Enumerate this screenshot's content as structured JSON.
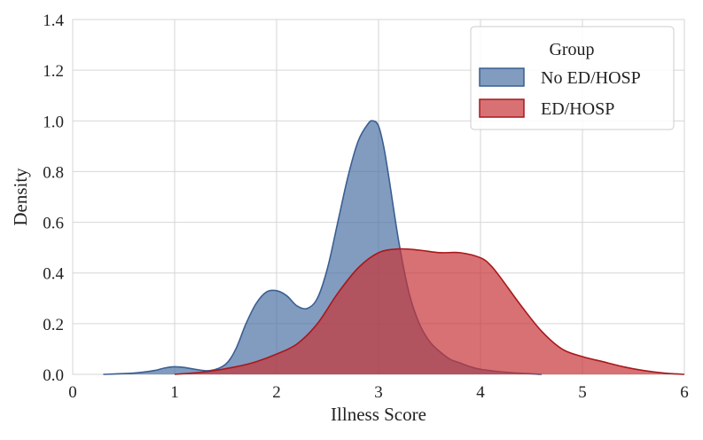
{
  "chart_data": {
    "type": "area",
    "title": "",
    "xlabel": "Illness Score",
    "ylabel": "Density",
    "xlim": [
      0,
      6
    ],
    "ylim": [
      0,
      1.4
    ],
    "xticks": [
      "0",
      "1",
      "2",
      "3",
      "4",
      "5",
      "6"
    ],
    "yticks": [
      "0.0",
      "0.2",
      "0.4",
      "0.6",
      "0.8",
      "1.0",
      "1.2",
      "1.4"
    ],
    "grid": true,
    "legend": {
      "title": "Group",
      "position": "top-right"
    },
    "series": [
      {
        "name": "No ED/HOSP",
        "fill": "#4c72a4",
        "stroke": "#3a5f92",
        "x": [
          0.3,
          0.6,
          0.8,
          0.9,
          1.0,
          1.1,
          1.2,
          1.35,
          1.5,
          1.6,
          1.7,
          1.8,
          1.9,
          2.0,
          2.1,
          2.2,
          2.3,
          2.4,
          2.5,
          2.6,
          2.7,
          2.8,
          2.9,
          2.95,
          3.0,
          3.05,
          3.1,
          3.2,
          3.3,
          3.4,
          3.5,
          3.6,
          3.7,
          3.8,
          3.9,
          4.0,
          4.2,
          4.4,
          4.6
        ],
        "y": [
          0.0,
          0.005,
          0.015,
          0.025,
          0.03,
          0.027,
          0.02,
          0.015,
          0.04,
          0.1,
          0.2,
          0.28,
          0.325,
          0.33,
          0.31,
          0.27,
          0.26,
          0.3,
          0.42,
          0.6,
          0.78,
          0.92,
          0.99,
          1.0,
          0.98,
          0.9,
          0.78,
          0.52,
          0.32,
          0.2,
          0.13,
          0.09,
          0.06,
          0.045,
          0.03,
          0.02,
          0.01,
          0.004,
          0.0
        ]
      },
      {
        "name": "ED/HOSP",
        "fill": "#c83437",
        "stroke": "#a8181c",
        "x": [
          1.0,
          1.3,
          1.6,
          1.8,
          2.0,
          2.2,
          2.4,
          2.6,
          2.8,
          3.0,
          3.2,
          3.4,
          3.6,
          3.8,
          4.0,
          4.1,
          4.2,
          4.4,
          4.6,
          4.8,
          5.0,
          5.2,
          5.4,
          5.6,
          5.8,
          6.0
        ],
        "y": [
          0.0,
          0.01,
          0.03,
          0.05,
          0.08,
          0.12,
          0.2,
          0.32,
          0.42,
          0.48,
          0.495,
          0.49,
          0.48,
          0.48,
          0.46,
          0.43,
          0.38,
          0.27,
          0.17,
          0.1,
          0.07,
          0.05,
          0.03,
          0.015,
          0.005,
          0.0
        ]
      }
    ]
  }
}
